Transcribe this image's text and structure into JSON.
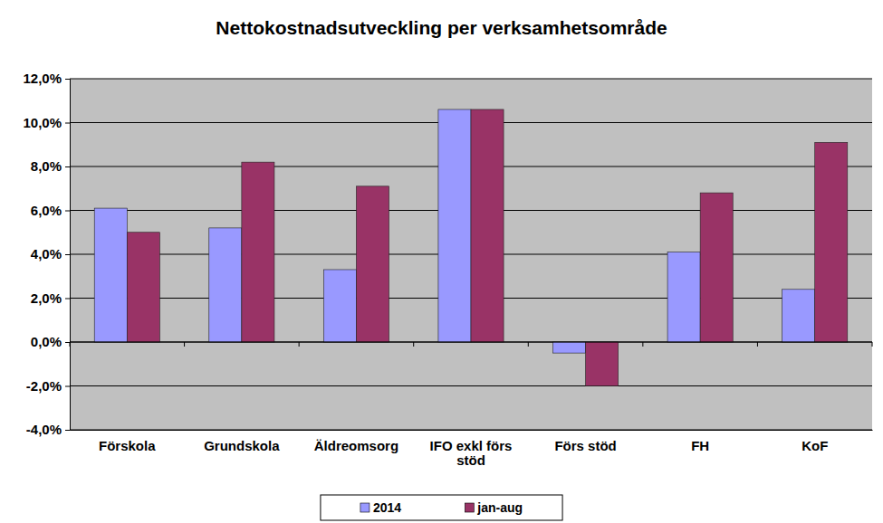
{
  "chart_data": {
    "type": "bar",
    "title": "Nettokostnadsutveckling per verksamhetsområde",
    "categories": [
      "Förskola",
      "Grundskola",
      "Äldreomsorg",
      "IFO exkl förs stöd",
      "Förs stöd",
      "FH",
      "KoF"
    ],
    "series": [
      {
        "name": "2014",
        "color": "#9999ff",
        "values": [
          6.1,
          5.2,
          3.3,
          10.6,
          -0.5,
          4.1,
          2.4
        ]
      },
      {
        "name": "jan-aug",
        "color": "#993366",
        "values": [
          5.0,
          8.2,
          7.1,
          10.6,
          -2.0,
          6.8,
          9.1
        ]
      }
    ],
    "ylim": [
      -4,
      12
    ],
    "yticks": [
      {
        "value": -4,
        "label": "-4,0%"
      },
      {
        "value": -2,
        "label": "-2,0%"
      },
      {
        "value": 0,
        "label": "0,0%"
      },
      {
        "value": 2,
        "label": "2,0%"
      },
      {
        "value": 4,
        "label": "4,0%"
      },
      {
        "value": 6,
        "label": "6,0%"
      },
      {
        "value": 8,
        "label": "8,0%"
      },
      {
        "value": 10,
        "label": "10,0%"
      },
      {
        "value": 12,
        "label": "12,0%"
      }
    ],
    "grid": true,
    "legend": "bottom"
  }
}
